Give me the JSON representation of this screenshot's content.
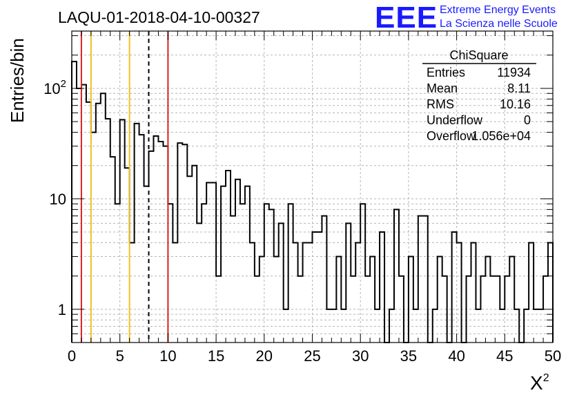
{
  "header": {
    "run_title": "LAQU-01-2018-04-10-00327",
    "logo_text": "EEE",
    "logo_line1": "Extreme Energy Events",
    "logo_line2": "La Scienza nelle Scuole"
  },
  "stats_box": {
    "title": "ChiSquare",
    "rows": [
      {
        "label": "Entries",
        "value": "11934"
      },
      {
        "label": "Mean",
        "value": "8.11"
      },
      {
        "label": "RMS",
        "value": "10.16"
      },
      {
        "label": "Underflow",
        "value": "0"
      },
      {
        "label": "Overflow",
        "value": "1.056e+04"
      }
    ]
  },
  "colors": {
    "histogram": "#000000",
    "red_lines": "#dd2020",
    "yellow_lines": "#f0c020",
    "dashed_line": "#000000",
    "logo": "#1a1aff",
    "grid": "#b4b4b4"
  },
  "chart_data": {
    "type": "bar",
    "histogram_style": "step",
    "title": "LAQU-01-2018-04-10-00327",
    "xlabel": "X",
    "xlabel_superscript": "2",
    "ylabel": "Entries/bin",
    "x_scale": "linear",
    "y_scale": "log",
    "xlim": [
      0,
      50
    ],
    "ylim": [
      0.5,
      330
    ],
    "grid": true,
    "bin_width": 0.5,
    "x_ticks": [
      "0",
      "5",
      "10",
      "15",
      "20",
      "25",
      "30",
      "35",
      "40",
      "45",
      "50"
    ],
    "y_ticks": [
      "1",
      "10",
      "10^2"
    ],
    "y_tick_values": [
      1,
      10,
      100
    ],
    "values": [
      175,
      100,
      108,
      75,
      40,
      73,
      90,
      53,
      24,
      9,
      52,
      19,
      4,
      48,
      38,
      13,
      27,
      37,
      33,
      30,
      9,
      4,
      32,
      31,
      16,
      20,
      6,
      9,
      14,
      14,
      2,
      13,
      18,
      7,
      15,
      9,
      13,
      4,
      2,
      3,
      9,
      8,
      3,
      6,
      1,
      9,
      4,
      2,
      4,
      4,
      5,
      5,
      7,
      1,
      1,
      3,
      1,
      6,
      2,
      4,
      9,
      2,
      3,
      1,
      5,
      0.4,
      1,
      8,
      2,
      0.4,
      3,
      1,
      7,
      7,
      0.4,
      1,
      3,
      2,
      0.4,
      5,
      4,
      0.4,
      2,
      4,
      1,
      2,
      3,
      2,
      2,
      1,
      2,
      3,
      1,
      0.4,
      1,
      4,
      1,
      1,
      2,
      4
    ],
    "vertical_lines": [
      {
        "x": 1,
        "color": "#dd2020",
        "style": "solid"
      },
      {
        "x": 2,
        "color": "#f0c020",
        "style": "solid"
      },
      {
        "x": 6,
        "color": "#f0c020",
        "style": "solid"
      },
      {
        "x": 8,
        "color": "#000000",
        "style": "dashed"
      },
      {
        "x": 10,
        "color": "#dd2020",
        "style": "solid"
      }
    ]
  }
}
